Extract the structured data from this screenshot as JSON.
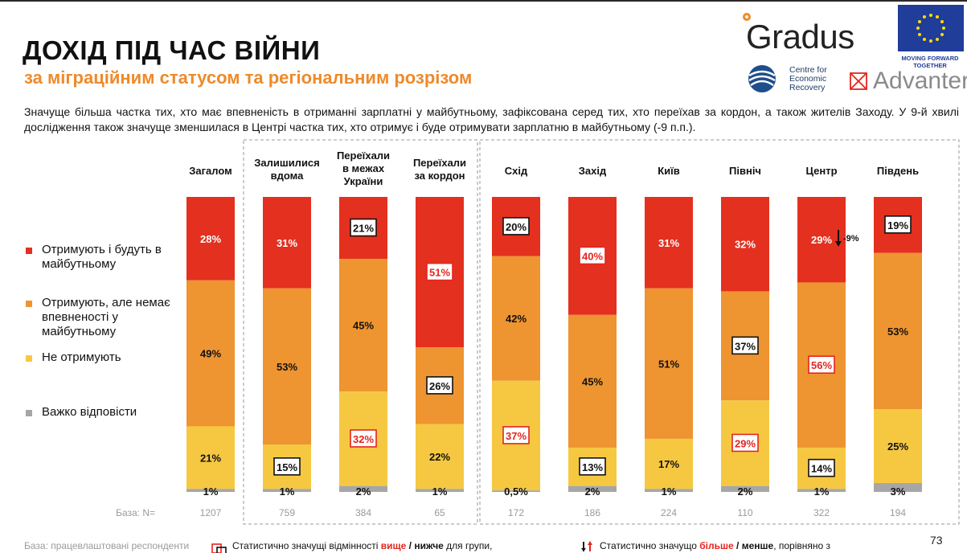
{
  "header": {
    "title": "ДОХІД ПІД ЧАС ВІЙНИ",
    "subtitle": "за міграційним статусом та регіональним розрізом",
    "description": "Значуще більша частка тих, хто має впевненість в отриманні зарплатні у майбутньому, зафіксована серед тих, хто переїхав за кордон, а також жителів Заходу. У 9-й хвилі дослідження також значуще зменшилася в Центрі частка тих, хто отримує і буде отримувати зарплатню в майбутньому (-9 п.п.)."
  },
  "logos": {
    "gradus": "Gradus",
    "eu_caption": "MOVING FORWARD TOGETHER",
    "cer": "Centre for Economic Recovery",
    "advanter": "Advanter"
  },
  "colors": {
    "red": "#E4301F",
    "orange": "#EE9430",
    "yellow": "#F6C842",
    "gray": "#A6A6A6",
    "accent": "#EE8A2A"
  },
  "legend": [
    {
      "label": "Отримують і будуть в майбутньому",
      "color": "#E4301F"
    },
    {
      "label": "Отримують, але немає впевненості у майбутньому",
      "color": "#EE9430"
    },
    {
      "label": "Не отримують",
      "color": "#F6C842"
    },
    {
      "label": "Важко відповісти",
      "color": "#A6A6A6"
    }
  ],
  "chart_data": {
    "type": "bar",
    "stacked": true,
    "normalized_percent": true,
    "categories": [
      "Загалом",
      "Залишилися вдома",
      "Переїхали в межах України",
      "Переїхали за кордон",
      "Схід",
      "Захід",
      "Київ",
      "Північ",
      "Центр",
      "Південь"
    ],
    "series": [
      {
        "name": "Отримують і будуть в майбутньому",
        "values": [
          28,
          31,
          21,
          51,
          20,
          40,
          31,
          32,
          29,
          19
        ],
        "labels": [
          "28%",
          "31%",
          "21%",
          "51%",
          "20%",
          "40%",
          "31%",
          "32%",
          "29%",
          "19%"
        ]
      },
      {
        "name": "Отримують, але немає впевненості у майбутньому",
        "values": [
          49,
          53,
          45,
          26,
          42,
          45,
          51,
          37,
          56,
          53
        ],
        "labels": [
          "49%",
          "53%",
          "45%",
          "26%",
          "42%",
          "45%",
          "51%",
          "37%",
          "56%",
          "53%"
        ]
      },
      {
        "name": "Не отримують",
        "values": [
          21,
          15,
          32,
          22,
          37,
          13,
          17,
          29,
          14,
          25
        ],
        "labels": [
          "21%",
          "15%",
          "32%",
          "22%",
          "37%",
          "13%",
          "17%",
          "29%",
          "14%",
          "25%"
        ]
      },
      {
        "name": "Важко відповісти",
        "values": [
          1,
          1,
          2,
          1,
          0.5,
          2,
          1,
          2,
          1,
          3
        ],
        "labels": [
          "1%",
          "1%",
          "2%",
          "1%",
          "0,5%",
          "2%",
          "1%",
          "2%",
          "1%",
          "3%"
        ]
      }
    ],
    "significance_higher": [
      [
        false,
        false,
        false,
        true,
        false,
        true,
        false,
        false,
        false,
        false
      ],
      [
        false,
        false,
        false,
        false,
        false,
        false,
        false,
        false,
        true,
        false
      ],
      [
        false,
        false,
        true,
        false,
        true,
        false,
        false,
        true,
        false,
        false
      ],
      [
        false,
        false,
        false,
        false,
        false,
        false,
        false,
        false,
        false,
        false
      ]
    ],
    "significance_lower": [
      [
        false,
        false,
        true,
        false,
        true,
        false,
        false,
        false,
        false,
        true
      ],
      [
        false,
        false,
        false,
        true,
        false,
        false,
        false,
        true,
        false,
        false
      ],
      [
        false,
        true,
        false,
        false,
        false,
        true,
        false,
        false,
        true,
        false
      ],
      [
        false,
        false,
        false,
        false,
        false,
        false,
        false,
        false,
        false,
        false
      ]
    ],
    "change_annotation": {
      "category": "Центр",
      "text": "-9%"
    },
    "base_label": "База: N=",
    "base_n": [
      1207,
      759,
      384,
      65,
      172,
      186,
      224,
      110,
      322,
      194
    ]
  },
  "footer": {
    "base_note": "База: працевлаштовані респонденти",
    "sig_note_1": "Статистично значущі відмінності ",
    "sig_note_1_hi": "вище",
    "sig_note_1_sep": " / ",
    "sig_note_1_lo": "нижче",
    "sig_note_1_end": " для групи,",
    "sig_note_2": "Статистично значущо ",
    "sig_note_2_hi": "більше",
    "sig_note_2_sep": " / ",
    "sig_note_2_lo": "менше",
    "sig_note_2_end": ", порівняно з",
    "page": "73"
  }
}
